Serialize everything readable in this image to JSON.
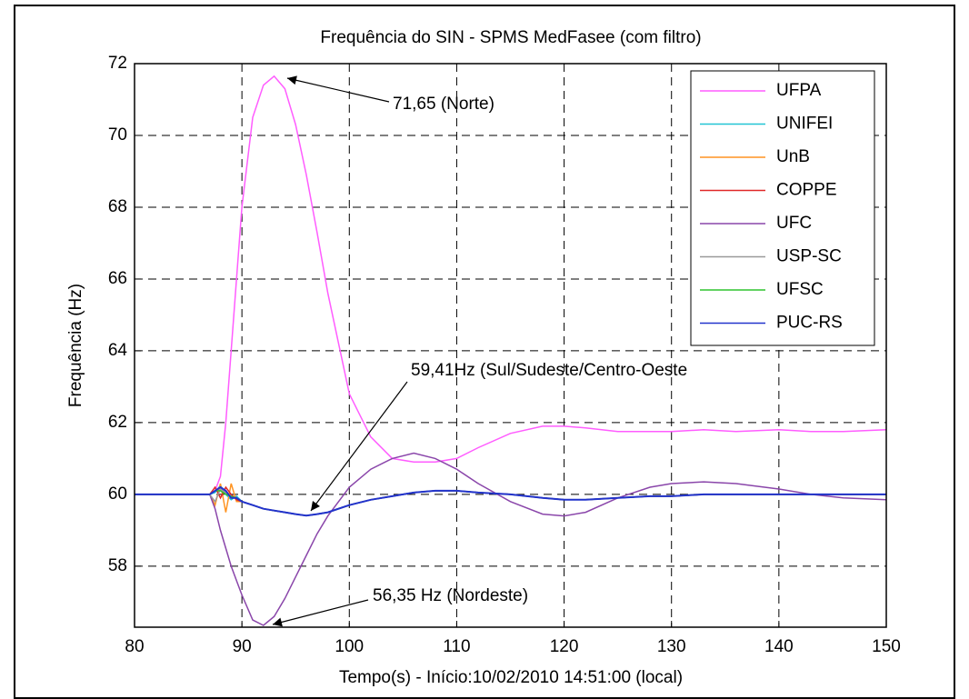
{
  "chart_data": {
    "type": "line",
    "title": "Frequência do SIN - SPMS MedFasee (com filtro)",
    "xlabel": "Tempo(s) - Início:10/02/2010 14:51:00 (local)",
    "ylabel": "Frequência (Hz)",
    "annotations": [
      "71,65 (Norte)",
      "59,41Hz (Sul/Sudeste/Centro-Oeste",
      "56,35 Hz (Nordeste)"
    ],
    "xlim": [
      80,
      150
    ],
    "ylim": [
      56.3,
      72
    ],
    "xticks": [
      80,
      90,
      100,
      110,
      120,
      130,
      140,
      150
    ],
    "yticks": [
      58,
      60,
      62,
      64,
      66,
      68,
      70,
      72
    ],
    "grid": true,
    "legend": "upper right",
    "x": [
      80,
      82,
      84,
      86,
      87,
      87.5,
      88,
      88.5,
      89,
      89.5,
      90,
      91,
      92,
      93,
      94,
      95,
      96,
      97,
      98,
      100,
      102,
      104,
      106,
      108,
      110,
      112,
      115,
      118,
      120,
      122,
      125,
      128,
      130,
      133,
      136,
      140,
      143,
      146,
      150
    ],
    "series": [
      {
        "name": "UFPA",
        "color": "#ff5cff",
        "values": [
          60,
          60,
          60,
          60,
          60,
          60.1,
          60.5,
          62,
          64,
          66,
          68,
          70.5,
          71.4,
          71.65,
          71.3,
          70.3,
          68.9,
          67.3,
          65.6,
          62.8,
          61.6,
          61.0,
          60.9,
          60.9,
          61.0,
          61.3,
          61.7,
          61.9,
          61.9,
          61.85,
          61.75,
          61.75,
          61.75,
          61.8,
          61.75,
          61.8,
          61.75,
          61.75,
          61.8
        ]
      },
      {
        "name": "UNIFEI",
        "color": "#22c4d4",
        "values": [
          60,
          60,
          60,
          60,
          60,
          60.05,
          60.25,
          60.0,
          59.85,
          59.95,
          59.8,
          59.7,
          59.6,
          59.55,
          59.5,
          59.45,
          59.41,
          59.45,
          59.5,
          59.7,
          59.85,
          59.95,
          60.05,
          60.1,
          60.1,
          60.05,
          60,
          59.9,
          59.85,
          59.85,
          59.9,
          59.95,
          59.95,
          60,
          60,
          60,
          60,
          60,
          60
        ]
      },
      {
        "name": "UnB",
        "color": "#ff9422",
        "values": [
          60,
          60,
          60,
          60,
          60,
          59.7,
          60.3,
          59.5,
          60.3,
          59.8,
          59.8,
          59.7,
          59.6,
          59.55,
          59.5,
          59.45,
          59.41,
          59.45,
          59.5,
          59.7,
          59.85,
          59.95,
          60.05,
          60.1,
          60.1,
          60.05,
          60,
          59.9,
          59.85,
          59.85,
          59.9,
          59.95,
          59.95,
          60,
          60,
          60,
          60,
          60,
          60
        ]
      },
      {
        "name": "COPPE",
        "color": "#e02828",
        "values": [
          60,
          60,
          60,
          60,
          60,
          60.2,
          59.9,
          60.2,
          60.0,
          59.85,
          59.8,
          59.7,
          59.6,
          59.55,
          59.5,
          59.45,
          59.41,
          59.45,
          59.5,
          59.7,
          59.85,
          59.95,
          60.05,
          60.1,
          60.1,
          60.05,
          60,
          59.9,
          59.85,
          59.85,
          59.9,
          59.95,
          59.95,
          60,
          60,
          60,
          60,
          60,
          60
        ]
      },
      {
        "name": "UFC",
        "color": "#8a46aa",
        "values": [
          60,
          60,
          60,
          60,
          60,
          59.6,
          59.0,
          58.5,
          58.0,
          57.6,
          57.2,
          56.5,
          56.35,
          56.6,
          57.1,
          57.7,
          58.3,
          58.9,
          59.4,
          60.2,
          60.7,
          61.0,
          61.15,
          61.0,
          60.7,
          60.3,
          59.8,
          59.45,
          59.4,
          59.5,
          59.9,
          60.2,
          60.3,
          60.35,
          60.3,
          60.15,
          60.0,
          59.9,
          59.85
        ]
      },
      {
        "name": "USP-SC",
        "color": "#9a9a9a",
        "values": [
          60,
          60,
          60,
          60,
          60,
          59.8,
          60.15,
          60.05,
          59.9,
          59.9,
          59.8,
          59.7,
          59.6,
          59.55,
          59.5,
          59.45,
          59.41,
          59.45,
          59.5,
          59.7,
          59.85,
          59.95,
          60.05,
          60.1,
          60.1,
          60.05,
          60,
          59.9,
          59.85,
          59.85,
          59.9,
          59.95,
          59.95,
          60,
          60,
          60,
          60,
          60,
          60
        ]
      },
      {
        "name": "UFSC",
        "color": "#2ec42e",
        "values": [
          60,
          60,
          60,
          60,
          60,
          60.1,
          60.1,
          60.0,
          59.95,
          59.9,
          59.8,
          59.7,
          59.6,
          59.55,
          59.5,
          59.45,
          59.41,
          59.45,
          59.5,
          59.7,
          59.85,
          59.95,
          60.05,
          60.1,
          60.1,
          60.05,
          60,
          59.9,
          59.85,
          59.85,
          59.9,
          59.95,
          59.95,
          60,
          60,
          60,
          60,
          60,
          60
        ]
      },
      {
        "name": "PUC-RS",
        "color": "#2233cc",
        "values": [
          60,
          60,
          60,
          60,
          60,
          60.1,
          60.2,
          60.1,
          59.9,
          59.9,
          59.8,
          59.7,
          59.6,
          59.55,
          59.5,
          59.45,
          59.41,
          59.45,
          59.5,
          59.7,
          59.85,
          59.95,
          60.05,
          60.1,
          60.1,
          60.05,
          60,
          59.9,
          59.85,
          59.85,
          59.9,
          59.95,
          59.95,
          60,
          60,
          60,
          60,
          60,
          60
        ]
      }
    ]
  }
}
